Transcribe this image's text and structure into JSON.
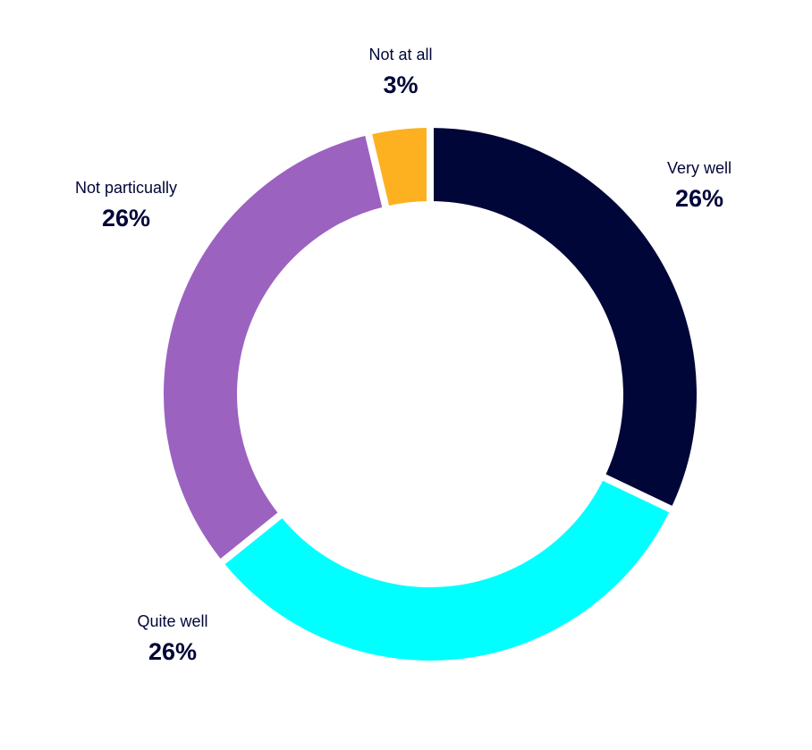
{
  "chart_data": {
    "type": "donut",
    "categories": [
      "Very well",
      "Quite well",
      "Not particually",
      "Not at all"
    ],
    "values": [
      26,
      26,
      26,
      3
    ],
    "value_labels": [
      "26%",
      "26%",
      "26%",
      "3%"
    ],
    "colors": [
      "#000638",
      "#00ffff",
      "#9b62c0",
      "#fdb120"
    ]
  }
}
